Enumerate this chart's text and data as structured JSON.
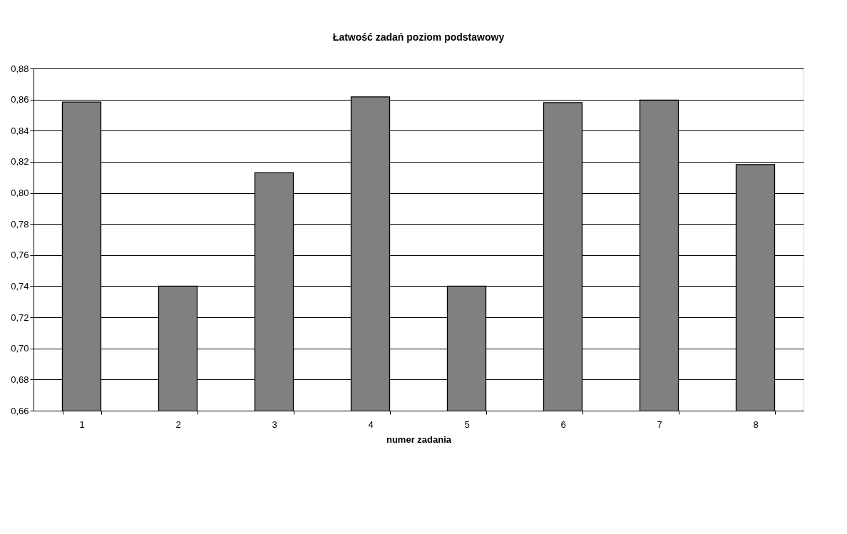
{
  "chart_data": {
    "type": "bar",
    "title": "Łatwość zadań poziom podstawowy",
    "xlabel": "numer zadania",
    "categories": [
      "1",
      "2",
      "3",
      "4",
      "5",
      "6",
      "7",
      "8"
    ],
    "values": [
      0.8584,
      0.74,
      0.813,
      0.8617,
      0.74,
      0.8581,
      0.8596,
      0.8182
    ],
    "color": "#808080",
    "ylim": [
      0.66,
      0.88
    ],
    "yticks": [
      {
        "value": 0.66,
        "label": "0,66"
      },
      {
        "value": 0.68,
        "label": "0,68"
      },
      {
        "value": 0.7,
        "label": "0,70"
      },
      {
        "value": 0.72,
        "label": "0,72"
      },
      {
        "value": 0.74,
        "label": "0,74"
      },
      {
        "value": 0.76,
        "label": "0,76"
      },
      {
        "value": 0.78,
        "label": "0,78"
      },
      {
        "value": 0.8,
        "label": "0,80"
      },
      {
        "value": 0.82,
        "label": "0,82"
      },
      {
        "value": 0.84,
        "label": "0,84"
      },
      {
        "value": 0.86,
        "label": "0,86"
      },
      {
        "value": 0.88,
        "label": "0,88"
      }
    ],
    "grid": "y"
  }
}
